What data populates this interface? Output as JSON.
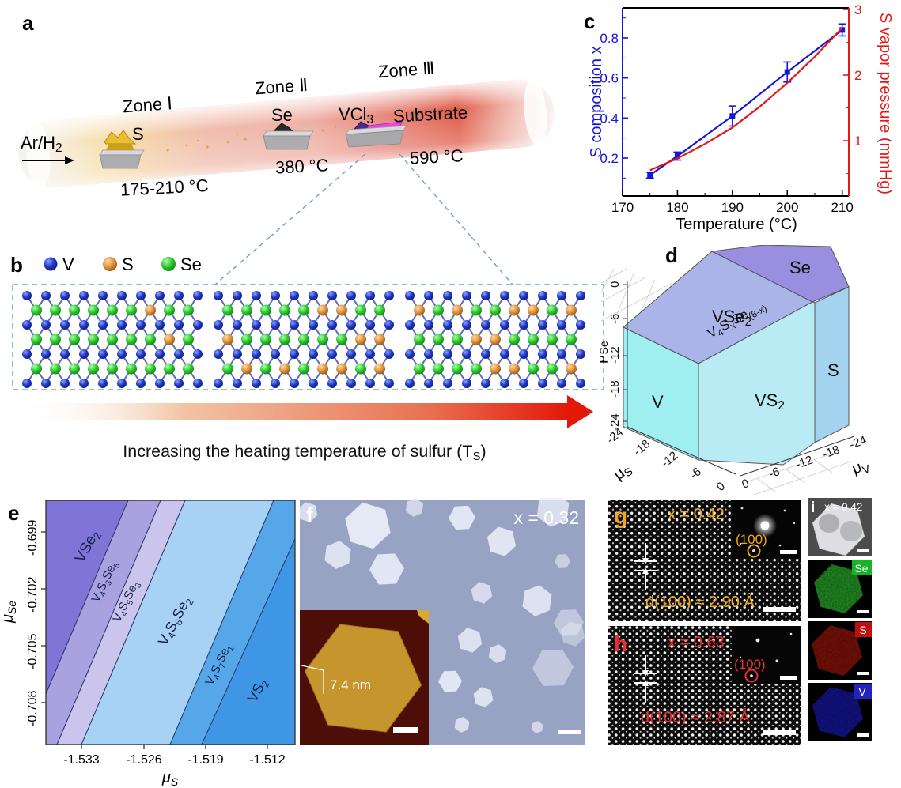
{
  "panels": {
    "a": "a",
    "b": "b",
    "c": "c",
    "d": "d",
    "e": "e",
    "f": "f",
    "g": "g",
    "h": "h",
    "i": "i"
  },
  "panel_a": {
    "gas_label": "Ar/H_2",
    "zone1": "Zone Ⅰ",
    "zone2": "Zone Ⅱ",
    "zone3": "Zone Ⅲ",
    "s_label": "S",
    "s_temp": "175-210 °C",
    "se_label": "Se",
    "se_temp": "380 °C",
    "vcl3_label": "VCl_3",
    "substrate_label": "Substrate",
    "substrate_temp": "590 °C"
  },
  "panel_b": {
    "legend": [
      {
        "element": "V",
        "color": "#2138c8"
      },
      {
        "element": "S",
        "color": "#e2953f"
      },
      {
        "element": "Se",
        "color": "#2ecc2e"
      }
    ],
    "caption": "Increasing the heating temperature of sulfur (T_S_)",
    "s_fractions": [
      0.18,
      0.42,
      0.62
    ]
  },
  "chart_data": {
    "type": "line",
    "xlabel": "Temperature (°C)",
    "ylabel_left": "S composition x",
    "ylabel_right": "S vapor pressure (mmHg)",
    "x_ticks": [
      "170",
      "180",
      "190",
      "200",
      "210"
    ],
    "xlim": [
      170,
      211.2
    ],
    "left": {
      "color": "#1515dd",
      "ticks": [
        "0.2",
        "0.4",
        "0.6",
        "0.8"
      ],
      "lim": [
        0.0105,
        0.95
      ]
    },
    "right": {
      "color": "#e41818",
      "ticks": [
        "1",
        "2",
        "3"
      ],
      "lim": [
        0.157,
        3.024
      ]
    },
    "series": [
      {
        "name": "S composition x",
        "axis": "left",
        "color": "#1515dd",
        "marker": "square",
        "x": [
          175,
          180,
          190,
          200,
          210
        ],
        "y": [
          0.115,
          0.21,
          0.41,
          0.63,
          0.84
        ],
        "yerr": [
          0.015,
          0.02,
          0.05,
          0.05,
          0.03
        ]
      },
      {
        "name": "S vapor pressure",
        "axis": "right",
        "color": "#e41818",
        "marker": "none",
        "x": [
          175,
          180,
          185,
          190,
          195,
          200,
          205,
          210
        ],
        "y": [
          0.55,
          0.73,
          0.95,
          1.2,
          1.52,
          1.88,
          2.28,
          2.72
        ]
      }
    ],
    "grid": false,
    "legend_position": "none"
  },
  "panel_d": {
    "region_se": "Se",
    "region_vse2": "VSe_2",
    "region_edge": "V_4_S_x_Se_(8-x)",
    "region_v": "V",
    "region_vs2": "VS_2",
    "region_s": "S",
    "mu_se_label": "μ_Se",
    "mu_s_label": "μ_S",
    "mu_v_label": "μ_V",
    "mu_se_ticks": [
      "0",
      "-6",
      "-12",
      "-18",
      "-24"
    ],
    "mu_s_ticks": [
      "-24",
      "-18",
      "-12",
      "-6",
      "0"
    ],
    "mu_v_ticks": [
      "0",
      "-6",
      "-12",
      "-18",
      "-24"
    ]
  },
  "panel_e": {
    "ylabel": "μ_Se",
    "xlabel": "μ_S",
    "y_ticks": [
      "-0.699",
      "-0.702",
      "-0.705",
      "-0.708"
    ],
    "x_ticks": [
      "-1.533",
      "-1.526",
      "-1.519",
      "-1.512"
    ],
    "regions": [
      {
        "name": "VSe_2",
        "color": "#8075d6"
      },
      {
        "name": "V_4_S_3_Se_5",
        "color": "#a9a1e0"
      },
      {
        "name": "V_4_S_5_Se_3",
        "color": "#cbc5ee"
      },
      {
        "name": "V_4_S_6_Se_2",
        "color": "#a8d2f4"
      },
      {
        "name": "V_4_S_7_Se_1",
        "color": "#56a7ea"
      },
      {
        "name": "VS_2",
        "color": "#3e96e4"
      }
    ]
  },
  "panel_f": {
    "composition": "x = 0.32",
    "inset_thickness": "7.4 nm"
  },
  "panel_g": {
    "composition": "x = 0.42",
    "d_spacing": "d(100) ≈ 2.90 Å",
    "plane": "(100)",
    "accent": "#f0a818"
  },
  "panel_h": {
    "composition": "x = 0.63",
    "d_spacing": "d(100) ≈ 2.87 Å",
    "plane": "(100)",
    "accent": "#e83030"
  },
  "panel_i": {
    "composition": "x = 0.42",
    "maps": [
      {
        "element": "Se",
        "badge": "#19b327",
        "map_color": "#28a428"
      },
      {
        "element": "S",
        "badge": "#bd1111",
        "map_color": "#8c1408"
      },
      {
        "element": "V",
        "badge": "#2222bd",
        "map_color": "#1616a0"
      }
    ]
  }
}
